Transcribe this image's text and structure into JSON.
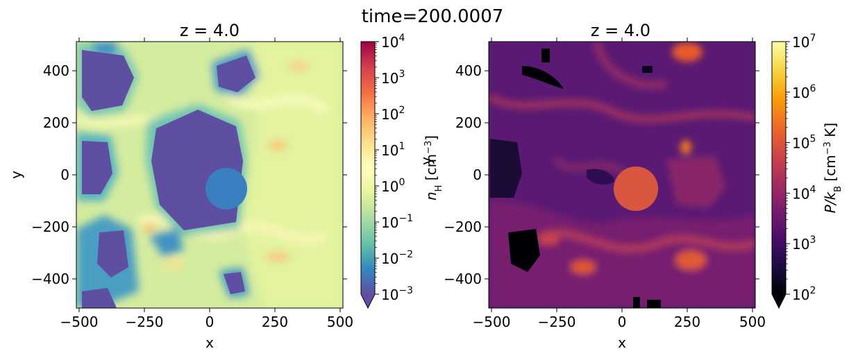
{
  "suptitle": "time=200.0007",
  "chart_data": [
    {
      "type": "heatmap",
      "title": "z = 4.0",
      "xlabel": "x",
      "ylabel": "y",
      "xlim": [
        -512,
        512
      ],
      "ylim": [
        -512,
        512
      ],
      "xticks": [
        "−500",
        "−250",
        "0",
        "250",
        "500"
      ],
      "yticks": [
        "400",
        "200",
        "0",
        "−200",
        "−400"
      ],
      "colormap": "Spectral_r",
      "colorbar": {
        "label": "n_H [cm^-3]",
        "label_main": "n",
        "label_sub": "H",
        "label_unit": " [cm",
        "label_exp": "−3",
        "label_close": "]",
        "scale": "log",
        "range": [
          0.001,
          10000
        ],
        "extend": "min",
        "ticks": [
          {
            "base": "10",
            "exp": "4"
          },
          {
            "base": "10",
            "exp": "3"
          },
          {
            "base": "10",
            "exp": "2"
          },
          {
            "base": "10",
            "exp": "1"
          },
          {
            "base": "10",
            "exp": "0"
          },
          {
            "base": "10",
            "exp": "−1"
          },
          {
            "base": "10",
            "exp": "−2"
          },
          {
            "base": "10",
            "exp": "−3"
          }
        ],
        "colors": [
          "#5e4fa2",
          "#3288bd",
          "#66c2a5",
          "#abdda4",
          "#e6f598",
          "#ffffbf",
          "#fee08b",
          "#fdae61",
          "#f46d43",
          "#d53e4f",
          "#9e0142"
        ]
      },
      "overlap_label": "y"
    },
    {
      "type": "heatmap",
      "title": "z = 4.0",
      "xlabel": "x",
      "ylabel": "",
      "xlim": [
        -512,
        512
      ],
      "ylim": [
        -512,
        512
      ],
      "xticks": [
        "−500",
        "−250",
        "0",
        "250",
        "500"
      ],
      "yticks": [
        "400",
        "200",
        "0",
        "−200",
        "−400"
      ],
      "colormap": "inferno",
      "colorbar": {
        "label": "P/k_B [cm^-3 K]",
        "label_main": "P/k",
        "label_sub": "B",
        "label_unit": " [cm",
        "label_exp": "−3",
        "label_close": " K]",
        "scale": "log",
        "range": [
          100,
          10000000
        ],
        "extend": "min",
        "ticks": [
          {
            "base": "10",
            "exp": "7"
          },
          {
            "base": "10",
            "exp": "6"
          },
          {
            "base": "10",
            "exp": "5"
          },
          {
            "base": "10",
            "exp": "4"
          },
          {
            "base": "10",
            "exp": "3"
          },
          {
            "base": "10",
            "exp": "2"
          }
        ],
        "colors": [
          "#000004",
          "#1b0c41",
          "#4a0c6b",
          "#781c6d",
          "#a52c60",
          "#cf4446",
          "#ed6925",
          "#fb9b06",
          "#f7d13d",
          "#fcffa4"
        ]
      }
    }
  ]
}
